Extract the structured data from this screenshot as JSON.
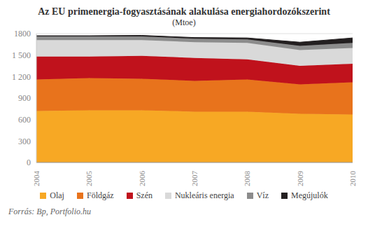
{
  "chart_data": {
    "type": "area",
    "title": "Az EU primenergia-fogyasztásának alakulása energiahordozókszerint",
    "subtitle": "(Mtoe)",
    "source": "Forrás: Bp, Portfolio.hu",
    "categories": [
      "2004",
      "2005",
      "2006",
      "2007",
      "2008",
      "2009",
      "2010"
    ],
    "series": [
      {
        "name": "Olaj",
        "color": "#f7a824",
        "values": [
          720,
          730,
          730,
          710,
          710,
          680,
          670
        ]
      },
      {
        "name": "Földgáz",
        "color": "#e8731c",
        "values": [
          440,
          450,
          440,
          430,
          450,
          410,
          450
        ]
      },
      {
        "name": "Szén",
        "color": "#c0121c",
        "values": [
          320,
          300,
          320,
          320,
          280,
          260,
          260
        ]
      },
      {
        "name": "Nukleáris energia",
        "color": "#d9d9d9",
        "values": [
          230,
          230,
          220,
          220,
          230,
          220,
          220
        ]
      },
      {
        "name": "Víz",
        "color": "#8c8c8c",
        "values": [
          50,
          50,
          50,
          50,
          50,
          60,
          70
        ]
      },
      {
        "name": "Megújulók",
        "color": "#231f20",
        "values": [
          10,
          10,
          15,
          15,
          20,
          50,
          70
        ]
      }
    ],
    "ylim": [
      0,
      1800
    ],
    "yticks": [
      0,
      300,
      600,
      900,
      {
        "value": 1200,
        "label": "1 200"
      },
      {
        "value": 1500,
        "label": "1 500"
      },
      1800
    ],
    "grid": true,
    "stacked": true,
    "legend": "bottom"
  }
}
